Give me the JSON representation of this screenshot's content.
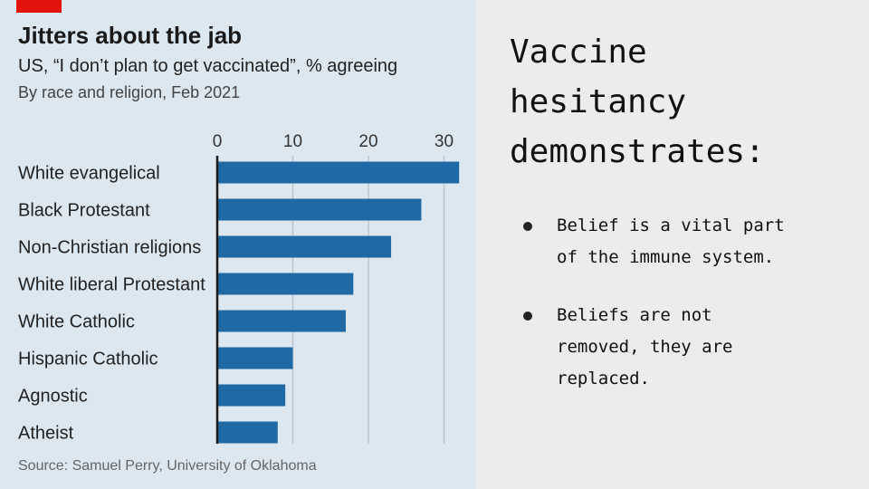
{
  "slide": {
    "title_lines": [
      "Vaccine",
      "hesitancy",
      "demonstrates:"
    ],
    "bullets": [
      {
        "lines": [
          "Belief is a vital part",
          "of the immune system."
        ]
      },
      {
        "lines": [
          "Beliefs are not",
          "removed, they are",
          "replaced."
        ]
      }
    ]
  },
  "chart_data": {
    "type": "bar",
    "orientation": "horizontal",
    "title": "Jitters about the jab",
    "subtitle": "US, “I don’t plan to get vaccinated”, % agreeing",
    "subtitle2": "By race and religion, Feb 2021",
    "source": "Source: Samuel Perry, University of Oklahoma",
    "categories": [
      "White evangelical",
      "Black Protestant",
      "Non-Christian religions",
      "White liberal Protestant",
      "White Catholic",
      "Hispanic Catholic",
      "Agnostic",
      "Atheist"
    ],
    "values": [
      32,
      27,
      23,
      18,
      17,
      10,
      9,
      8
    ],
    "xlim": [
      0,
      32
    ],
    "xticks": [
      0,
      10,
      20,
      30
    ],
    "grid": true,
    "colors": {
      "bar": "#1f6aa5",
      "grid": "#b9c6d2",
      "axis": "#1a1a1a",
      "background": "#dde7f0",
      "accent": "#e3120b"
    }
  }
}
